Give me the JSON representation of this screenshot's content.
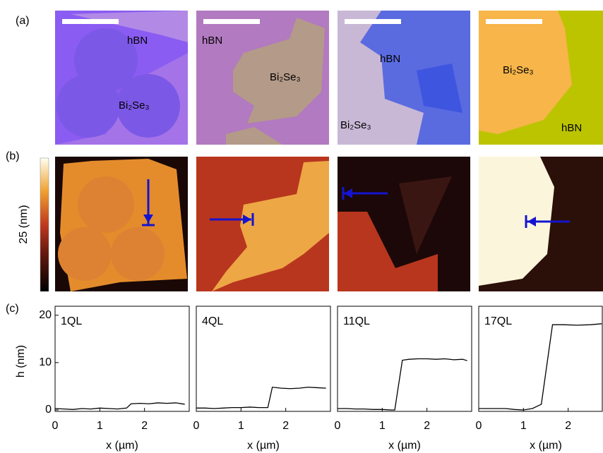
{
  "panel_labels": [
    "(a)",
    "(b)",
    "(c)"
  ],
  "optical_labels": [
    [
      "hBN",
      "Bi₂Se₃"
    ],
    [
      "hBN",
      "Bi₂Se₃"
    ],
    [
      "hBN",
      "Bi₂Se₃"
    ],
    [
      "Bi₂Se₃",
      "hBN"
    ]
  ],
  "colorbar_label": "25 (nm)",
  "chart_data": [
    {
      "type": "line",
      "annotation": "1QL",
      "x_label": "x (µm)",
      "y_label": "h (nm)",
      "color": "#000000",
      "x": [
        0,
        0.2,
        0.4,
        0.6,
        0.8,
        1.0,
        1.2,
        1.4,
        1.6,
        1.7,
        1.9,
        2.1,
        2.3,
        2.5,
        2.7,
        2.9
      ],
      "values": [
        0.3,
        0.2,
        0.1,
        0.3,
        0.2,
        0.4,
        0.3,
        0.2,
        0.4,
        1.3,
        1.4,
        1.3,
        1.5,
        1.4,
        1.5,
        1.2
      ],
      "xlim": [
        0,
        3
      ],
      "ylim": [
        -0.3,
        21.9
      ],
      "xticks": [
        0,
        1,
        2
      ],
      "yticks": [
        0,
        10,
        20
      ]
    },
    {
      "type": "line",
      "annotation": "4QL",
      "x_label": "x (µm)",
      "color": "#000000",
      "x": [
        0,
        0.2,
        0.4,
        0.6,
        0.8,
        1.0,
        1.2,
        1.4,
        1.6,
        1.7,
        1.9,
        2.1,
        2.3,
        2.5,
        2.7,
        2.9
      ],
      "values": [
        0.4,
        0.4,
        0.3,
        0.4,
        0.5,
        0.5,
        0.6,
        0.5,
        0.5,
        4.8,
        4.6,
        4.5,
        4.6,
        4.8,
        4.7,
        4.6
      ],
      "xlim": [
        0,
        3
      ],
      "ylim": [
        -0.3,
        21.9
      ],
      "xticks": [
        0,
        1,
        2
      ]
    },
    {
      "type": "line",
      "annotation": "11QL",
      "x_label": "x (µm)",
      "color": "#000000",
      "x": [
        0,
        0.2,
        0.4,
        0.6,
        0.8,
        1.0,
        1.2,
        1.28,
        1.45,
        1.6,
        1.8,
        2.0,
        2.2,
        2.4,
        2.6,
        2.8,
        2.9
      ],
      "values": [
        0.3,
        0.3,
        0.2,
        0.2,
        0.1,
        0.1,
        0.0,
        0.0,
        10.5,
        10.7,
        10.8,
        10.8,
        10.7,
        10.8,
        10.6,
        10.7,
        10.4
      ],
      "xlim": [
        0,
        3
      ],
      "ylim": [
        -0.3,
        21.9
      ],
      "xticks": [
        0,
        1,
        2
      ]
    },
    {
      "type": "line",
      "annotation": "17QL",
      "x_label": "x (µm)",
      "color": "#000000",
      "x": [
        0,
        0.3,
        0.6,
        0.8,
        1.0,
        1.2,
        1.4,
        1.65,
        1.9,
        2.2,
        2.5,
        2.75
      ],
      "values": [
        0.3,
        0.3,
        0.3,
        0.1,
        0.0,
        0.3,
        1.2,
        18.0,
        18.0,
        17.9,
        18.0,
        18.2
      ],
      "xlim": [
        0,
        2.8
      ],
      "ylim": [
        -0.3,
        21.9
      ],
      "xticks": [
        0,
        1,
        2
      ]
    }
  ]
}
